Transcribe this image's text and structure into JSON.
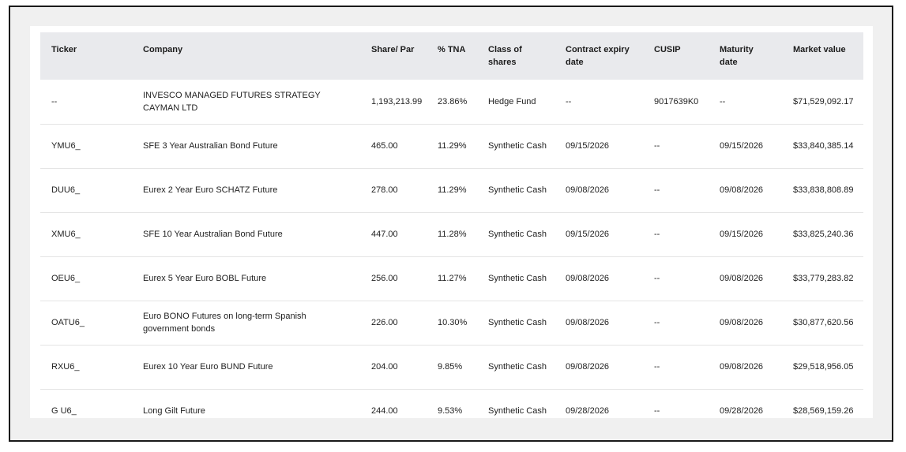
{
  "table": {
    "headers": {
      "ticker": "Ticker",
      "company": "Company",
      "share_par": "Share/ Par",
      "tna": "% TNA",
      "class_line1": "Class of",
      "class_line2": "shares",
      "expiry_line1": "Contract expiry",
      "expiry_line2": "date",
      "cusip": "CUSIP",
      "maturity_line1": "Maturity",
      "maturity_line2": "date",
      "market_value": "Market value"
    },
    "rows": [
      {
        "ticker": "--",
        "company": "INVESCO MANAGED FUTURES STRATEGY CAYMAN LTD",
        "share_par": "1,193,213.99",
        "tna": "23.86%",
        "class": "Hedge Fund",
        "expiry": "--",
        "cusip": "9017639K0",
        "maturity": "--",
        "market_value": "$71,529,092.17"
      },
      {
        "ticker": "YMU6_",
        "company": "SFE 3 Year Australian Bond Future",
        "share_par": "465.00",
        "tna": "11.29%",
        "class": "Synthetic Cash",
        "expiry": "09/15/2026",
        "cusip": "--",
        "maturity": "09/15/2026",
        "market_value": "$33,840,385.14"
      },
      {
        "ticker": "DUU6_",
        "company": "Eurex 2 Year Euro SCHATZ Future",
        "share_par": "278.00",
        "tna": "11.29%",
        "class": "Synthetic Cash",
        "expiry": "09/08/2026",
        "cusip": "--",
        "maturity": "09/08/2026",
        "market_value": "$33,838,808.89"
      },
      {
        "ticker": "XMU6_",
        "company": "SFE 10 Year Australian Bond Future",
        "share_par": "447.00",
        "tna": "11.28%",
        "class": "Synthetic Cash",
        "expiry": "09/15/2026",
        "cusip": "--",
        "maturity": "09/15/2026",
        "market_value": "$33,825,240.36"
      },
      {
        "ticker": "OEU6_",
        "company": "Eurex 5 Year Euro BOBL Future",
        "share_par": "256.00",
        "tna": "11.27%",
        "class": "Synthetic Cash",
        "expiry": "09/08/2026",
        "cusip": "--",
        "maturity": "09/08/2026",
        "market_value": "$33,779,283.82"
      },
      {
        "ticker": "OATU6_",
        "company": "Euro BONO Futures on long-term Spanish government bonds",
        "share_par": "226.00",
        "tna": "10.30%",
        "class": "Synthetic Cash",
        "expiry": "09/08/2026",
        "cusip": "--",
        "maturity": "09/08/2026",
        "market_value": "$30,877,620.56"
      },
      {
        "ticker": "RXU6_",
        "company": "Eurex 10 Year Euro BUND Future",
        "share_par": "204.00",
        "tna": "9.85%",
        "class": "Synthetic Cash",
        "expiry": "09/08/2026",
        "cusip": "--",
        "maturity": "09/08/2026",
        "market_value": "$29,518,956.05"
      },
      {
        "ticker": "G U6_",
        "company": "Long Gilt Future",
        "share_par": "244.00",
        "tna": "9.53%",
        "class": "Synthetic Cash",
        "expiry": "09/28/2026",
        "cusip": "--",
        "maturity": "09/28/2026",
        "market_value": "$28,569,159.26"
      }
    ]
  }
}
